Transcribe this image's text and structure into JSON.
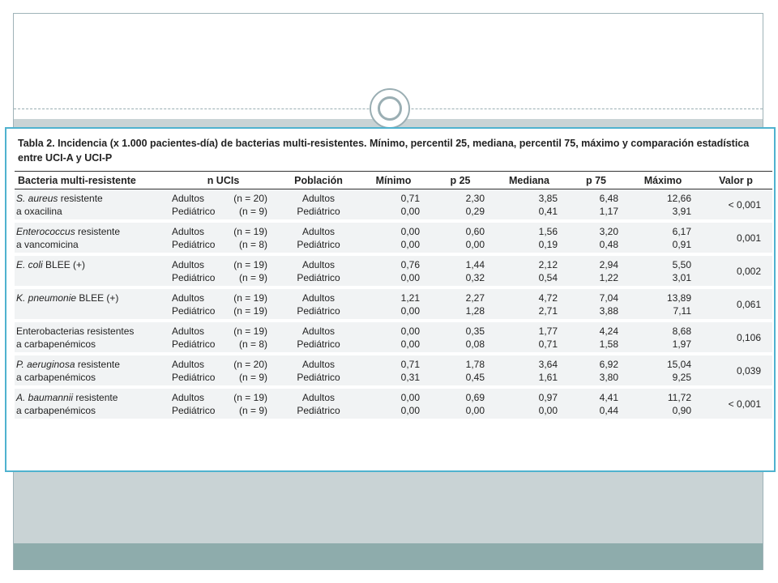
{
  "caption": "Tabla 2. Incidencia (x 1.000 pacientes-día) de bacterias multi-resistentes. Mínimo, percentil 25, mediana, percentil 75, máximo y comparación estadística entre UCI-A y UCI-P",
  "headers": [
    "Bacteria multi-resistente",
    "n UCIs",
    "Población",
    "Mínimo",
    "p 25",
    "Mediana",
    "p 75",
    "Máximo",
    "Valor p"
  ],
  "rows": [
    {
      "bacteria_em": "S. aureus",
      "bacteria_rest": " resistente",
      "bacteria_line2": "a oxacilina",
      "adult_group": "Adultos",
      "adult_n": "(n = 20)",
      "ped_group": "Pediátrico",
      "ped_n": "(n = 9)",
      "adult_pop": "Adultos",
      "ped_pop": "Pediátrico",
      "adult": [
        "0,71",
        "2,30",
        "3,85",
        "6,48",
        "12,66"
      ],
      "ped": [
        "0,00",
        "0,29",
        "0,41",
        "1,17",
        "3,91"
      ],
      "p": "< 0,001"
    },
    {
      "bacteria_em": "Enterococcus",
      "bacteria_rest": " resistente",
      "bacteria_line2": "a vancomicina",
      "adult_group": "Adultos",
      "adult_n": "(n = 19)",
      "ped_group": "Pediátrico",
      "ped_n": "(n = 8)",
      "adult_pop": "Adultos",
      "ped_pop": "Pediátrico",
      "adult": [
        "0,00",
        "0,60",
        "1,56",
        "3,20",
        "6,17"
      ],
      "ped": [
        "0,00",
        "0,00",
        "0,19",
        "0,48",
        "0,91"
      ],
      "p": "0,001"
    },
    {
      "bacteria_em": "E. coli",
      "bacteria_rest": " BLEE (+)",
      "bacteria_line2": "",
      "adult_group": "Adultos",
      "adult_n": "(n = 19)",
      "ped_group": "Pediátrico",
      "ped_n": "(n = 9)",
      "adult_pop": "Adultos",
      "ped_pop": "Pediátrico",
      "adult": [
        "0,76",
        "1,44",
        "2,12",
        "2,94",
        "5,50"
      ],
      "ped": [
        "0,00",
        "0,32",
        "0,54",
        "1,22",
        "3,01"
      ],
      "p": "0,002"
    },
    {
      "bacteria_em": "K. pneumonie",
      "bacteria_rest": " BLEE (+)",
      "bacteria_line2": "",
      "adult_group": "Adultos",
      "adult_n": "(n = 19)",
      "ped_group": "Pediátrico",
      "ped_n": "(n = 19)",
      "adult_pop": "Adultos",
      "ped_pop": "Pediátrico",
      "adult": [
        "1,21",
        "2,27",
        "4,72",
        "7,04",
        "13,89"
      ],
      "ped": [
        "0,00",
        "1,28",
        "2,71",
        "3,88",
        "7,11"
      ],
      "p": "0,061"
    },
    {
      "bacteria_em": "",
      "bacteria_rest": "Enterobacterias resistentes",
      "bacteria_line2": "a carbapenémicos",
      "adult_group": "Adultos",
      "adult_n": "(n = 19)",
      "ped_group": "Pediátrico",
      "ped_n": "(n = 8)",
      "adult_pop": "Adultos",
      "ped_pop": "Pediátrico",
      "adult": [
        "0,00",
        "0,35",
        "1,77",
        "4,24",
        "8,68"
      ],
      "ped": [
        "0,00",
        "0,08",
        "0,71",
        "1,58",
        "1,97"
      ],
      "p": "0,106"
    },
    {
      "bacteria_em": "P. aeruginosa",
      "bacteria_rest": " resistente",
      "bacteria_line2": "a carbapenémicos",
      "adult_group": "Adultos",
      "adult_n": "(n = 20)",
      "ped_group": "Pediátrico",
      "ped_n": "(n = 9)",
      "adult_pop": "Adultos",
      "ped_pop": "Pediátrico",
      "adult": [
        "0,71",
        "1,78",
        "3,64",
        "6,92",
        "15,04"
      ],
      "ped": [
        "0,31",
        "0,45",
        "1,61",
        "3,80",
        "9,25"
      ],
      "p": "0,039"
    },
    {
      "bacteria_em": "A. baumannii",
      "bacteria_rest": " resistente",
      "bacteria_line2": "a carbapenémicos",
      "adult_group": "Adultos",
      "adult_n": "(n = 19)",
      "ped_group": "Pediátrico",
      "ped_n": "(n = 9)",
      "adult_pop": "Adultos",
      "ped_pop": "Pediátrico",
      "adult": [
        "0,00",
        "0,69",
        "0,97",
        "4,41",
        "11,72"
      ],
      "ped": [
        "0,00",
        "0,00",
        "0,00",
        "0,44",
        "0,90"
      ],
      "p": "< 0,001"
    }
  ]
}
